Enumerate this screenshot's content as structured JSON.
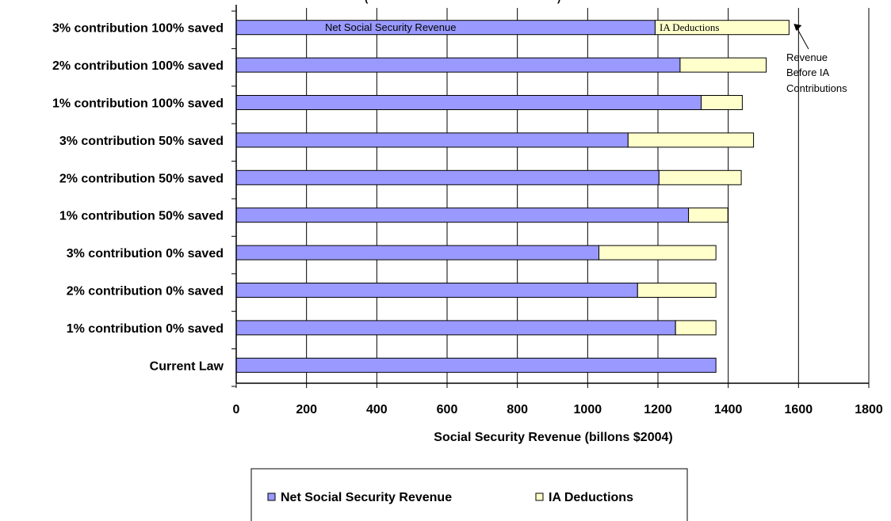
{
  "chart_data": {
    "type": "bar",
    "orientation": "horizontal",
    "stacked": true,
    "categories": [
      "3% contribution 100% saved",
      "2% contribution 100% saved",
      "1% contribution 100% saved",
      "3% contribution 50% saved",
      "2% contribution 50% saved",
      "1% contribution 50% saved",
      "3% contribution 0% saved",
      "2% contribution 0% saved",
      "1% contribution 0% saved",
      "Current Law"
    ],
    "series": [
      {
        "name": "Net Social Security Revenue",
        "color": "#9999ff",
        "values": [
          1192,
          1263,
          1323,
          1115,
          1203,
          1287,
          1032,
          1142,
          1250,
          1365
        ]
      },
      {
        "name": "IA Deductions",
        "color": "#ffffcc",
        "values": [
          381,
          245,
          117,
          357,
          234,
          112,
          333,
          223,
          115,
          0
        ]
      }
    ],
    "title": "",
    "title_fragment": "(",
    "title_fragment_right": ")",
    "xlabel": "Social Security Revenue (billons $2004)",
    "ylabel": "",
    "xlim": [
      0,
      1800
    ],
    "xticks": [
      "0",
      "200",
      "400",
      "600",
      "800",
      "1000",
      "1200",
      "1400",
      "1600",
      "1800"
    ],
    "gridlines": "vertical",
    "annotations": {
      "in_bar_net": "Net Social Security Revenue",
      "in_bar_ia": "IA Deductions",
      "callout_line1": "Revenue",
      "callout_line2": "Before IA",
      "callout_line3": "Contributions"
    },
    "legend": {
      "position": "bottom",
      "entries": [
        "Net Social Security Revenue",
        "IA Deductions"
      ]
    }
  }
}
